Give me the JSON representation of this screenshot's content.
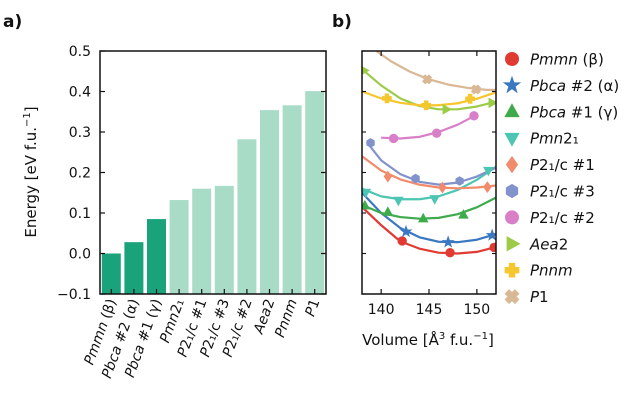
{
  "panels": {
    "a_label": "a)",
    "b_label": "b)"
  },
  "chart_data": [
    {
      "panel": "a",
      "type": "bar",
      "ylabel": "Energy [eV f.u.$^{-1}$]",
      "ylabel_main": "Energy [eV f.u.",
      "ylabel_sup": "−1",
      "ylabel_tail": "]",
      "ylim": [
        -0.1,
        0.5
      ],
      "yticks": [
        -0.1,
        0.0,
        0.1,
        0.2,
        0.3,
        0.4,
        0.5
      ],
      "ytick_labels": [
        "−0.1",
        "0.0",
        "0.1",
        "0.2",
        "0.3",
        "0.4",
        "0.5"
      ],
      "categories": [
        {
          "label": "Pmmn (β)",
          "italic": "Pmmn",
          "rest": " (β)",
          "value": 0.0,
          "highlight": true
        },
        {
          "label": "Pbca #2 (α)",
          "italic": "Pbca",
          "rest": " #2 (α)",
          "value": 0.028,
          "highlight": true
        },
        {
          "label": "Pbca #1 (γ)",
          "italic": "Pbca",
          "rest": " #1 (γ)",
          "value": 0.085,
          "highlight": true
        },
        {
          "label": "Pmn2₁",
          "italic": "Pmn",
          "rest": "2₁",
          "value": 0.132,
          "highlight": false
        },
        {
          "label": "P2₁/c #1",
          "italic": "P",
          "rest": "2₁/c #1",
          "value": 0.16,
          "highlight": false
        },
        {
          "label": "P2₁/c #3",
          "italic": "P",
          "rest": "2₁/c #3",
          "value": 0.167,
          "highlight": false
        },
        {
          "label": "P2₁/c #2",
          "italic": "P",
          "rest": "2₁/c #2",
          "value": 0.282,
          "highlight": false
        },
        {
          "label": "Aea2",
          "italic": "Aea",
          "rest": "2",
          "value": 0.354,
          "highlight": false
        },
        {
          "label": "Pnnm",
          "italic": "Pnnm",
          "rest": "",
          "value": 0.366,
          "highlight": false
        },
        {
          "label": "P1",
          "italic": "P",
          "rest": "1",
          "value": 0.401,
          "highlight": false
        }
      ],
      "colors": {
        "highlight": "#1aa37a",
        "normal": "#a8dcc6"
      }
    },
    {
      "panel": "b",
      "type": "line",
      "xlabel_main": "Volume [Å",
      "xlabel_sup3": "3",
      "xlabel_mid": " f.u.",
      "xlabel_sup": "−1",
      "xlabel_tail": "]",
      "xlim": [
        138,
        152
      ],
      "xticks": [
        140,
        145,
        150
      ],
      "xtick_labels": [
        "140",
        "145",
        "150"
      ],
      "ylim": [
        -0.1,
        0.5
      ],
      "series": [
        {
          "name": "Pmmn (β)",
          "italic": "Pmmn",
          "rest": " (β)",
          "color": "#e03a33",
          "marker": "circle",
          "curve": [
            [
              138,
              0.115
            ],
            [
              140,
              0.07
            ],
            [
              142,
              0.03
            ],
            [
              144,
              0.012
            ],
            [
              146,
              0.002
            ],
            [
              148,
              0.0
            ],
            [
              150,
              0.004
            ],
            [
              152,
              0.016
            ]
          ],
          "points": [
            [
              142.2,
              0.031
            ],
            [
              147.2,
              0.002
            ],
            [
              151.8,
              0.015
            ]
          ]
        },
        {
          "name": "Pbca #2 (α)",
          "italic": "Pbca",
          "rest": " #2 (α)",
          "color": "#3a78c2",
          "marker": "star",
          "curve": [
            [
              138,
              0.15
            ],
            [
              140,
              0.1
            ],
            [
              142,
              0.063
            ],
            [
              144,
              0.04
            ],
            [
              146,
              0.029
            ],
            [
              148,
              0.028
            ],
            [
              150,
              0.034
            ],
            [
              152,
              0.048
            ]
          ],
          "points": [
            [
              142.6,
              0.054
            ],
            [
              147.0,
              0.028
            ],
            [
              151.6,
              0.045
            ]
          ]
        },
        {
          "name": "Pbca #1 (γ)",
          "italic": "Pbca",
          "rest": " #1 (γ)",
          "color": "#3dab4b",
          "marker": "triangle-up",
          "curve": [
            [
              138,
              0.12
            ],
            [
              140,
              0.1
            ],
            [
              142,
              0.09
            ],
            [
              144,
              0.086
            ],
            [
              146,
              0.088
            ],
            [
              148,
              0.097
            ],
            [
              150,
              0.114
            ],
            [
              152,
              0.138
            ]
          ],
          "points": [
            [
              138.3,
              0.118
            ],
            [
              140.7,
              0.102
            ],
            [
              144.4,
              0.086
            ],
            [
              148.6,
              0.095
            ]
          ]
        },
        {
          "name": "Pmn2₁",
          "italic": "Pmn",
          "rest": "2₁",
          "color": "#4cc5b3",
          "marker": "triangle-down",
          "curve": [
            [
              138,
              0.16
            ],
            [
              140,
              0.141
            ],
            [
              142,
              0.134
            ],
            [
              144,
              0.134
            ],
            [
              146,
              0.141
            ],
            [
              148,
              0.157
            ],
            [
              150,
              0.182
            ],
            [
              152,
              0.214
            ]
          ],
          "points": [
            [
              138.4,
              0.151
            ],
            [
              141.8,
              0.131
            ],
            [
              145.6,
              0.135
            ],
            [
              151.2,
              0.205
            ]
          ]
        },
        {
          "name": "P2₁/c #1",
          "italic": "P",
          "rest": "2₁/c #1",
          "color": "#f28a6c",
          "marker": "diamond",
          "curve": [
            [
              138,
              0.24
            ],
            [
              140,
              0.205
            ],
            [
              142,
              0.183
            ],
            [
              144,
              0.17
            ],
            [
              146,
              0.163
            ],
            [
              148,
              0.161
            ],
            [
              150,
              0.163
            ],
            [
              152,
              0.168
            ]
          ],
          "points": [
            [
              140.7,
              0.19
            ],
            [
              146.4,
              0.163
            ],
            [
              151.1,
              0.164
            ]
          ]
        },
        {
          "name": "P2₁/c #3",
          "italic": "P",
          "rest": "2₁/c #3",
          "color": "#8292cc",
          "marker": "hexagon",
          "curve": [
            [
              138.5,
              0.275
            ],
            [
              140,
              0.23
            ],
            [
              142,
              0.196
            ],
            [
              144,
              0.177
            ],
            [
              146,
              0.17
            ],
            [
              148,
              0.175
            ],
            [
              150,
              0.19
            ],
            [
              152,
              0.212
            ]
          ],
          "points": [
            [
              138.9,
              0.273
            ],
            [
              143.6,
              0.185
            ],
            [
              148.2,
              0.179
            ]
          ]
        },
        {
          "name": "P2₁/c #2",
          "italic": "P",
          "rest": "2₁/c #2",
          "color": "#d97fc8",
          "marker": "circle",
          "curve": [
            [
              140,
              0.286
            ],
            [
              142,
              0.284
            ],
            [
              144,
              0.288
            ],
            [
              146,
              0.3
            ],
            [
              148,
              0.318
            ],
            [
              150,
              0.343
            ]
          ],
          "points": [
            [
              141.3,
              0.284
            ],
            [
              145.8,
              0.297
            ],
            [
              149.7,
              0.34
            ]
          ]
        },
        {
          "name": "Aea2",
          "italic": "Aea",
          "rest": "2",
          "color": "#9ccc47",
          "marker": "triangle-right",
          "curve": [
            [
              138,
              0.455
            ],
            [
              140,
              0.415
            ],
            [
              142,
              0.383
            ],
            [
              144,
              0.364
            ],
            [
              146,
              0.356
            ],
            [
              148,
              0.356
            ],
            [
              150,
              0.363
            ],
            [
              152,
              0.375
            ]
          ],
          "points": [
            [
              138.2,
              0.452
            ],
            [
              146.8,
              0.356
            ],
            [
              151.6,
              0.372
            ]
          ]
        },
        {
          "name": "Pnnm",
          "italic": "Pnnm",
          "rest": "",
          "color": "#f5c62e",
          "marker": "plus",
          "curve": [
            [
              138,
              0.4
            ],
            [
              140,
              0.383
            ],
            [
              142,
              0.372
            ],
            [
              144,
              0.366
            ],
            [
              146,
              0.366
            ],
            [
              148,
              0.371
            ],
            [
              150,
              0.382
            ],
            [
              152,
              0.398
            ]
          ],
          "points": [
            [
              140.6,
              0.383
            ],
            [
              144.7,
              0.366
            ],
            [
              149.3,
              0.382
            ]
          ]
        },
        {
          "name": "P1",
          "italic": "P",
          "rest": "1",
          "color": "#d9b896",
          "marker": "x",
          "curve": [
            [
              139.5,
              0.5
            ],
            [
              141,
              0.475
            ],
            [
              143,
              0.449
            ],
            [
              145,
              0.43
            ],
            [
              147,
              0.417
            ],
            [
              149,
              0.409
            ],
            [
              151,
              0.404
            ],
            [
              152,
              0.404
            ]
          ],
          "points": [
            [
              144.8,
              0.43
            ],
            [
              149.9,
              0.405
            ]
          ]
        }
      ]
    }
  ]
}
